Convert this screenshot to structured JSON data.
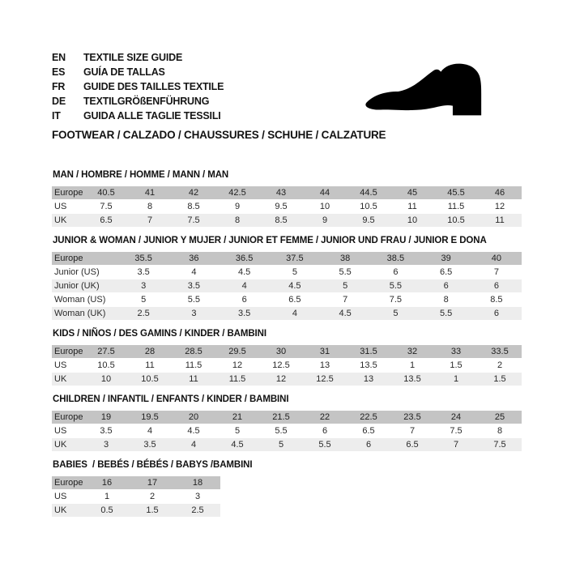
{
  "header": {
    "languages": [
      {
        "code": "EN",
        "label": "TEXTILE SIZE GUIDE"
      },
      {
        "code": "ES",
        "label": "GUÍA DE TALLAS"
      },
      {
        "code": "FR",
        "label": "GUIDE DES TAILLES TEXTILE"
      },
      {
        "code": "DE",
        "label": "TEXTILGRÖßENFÜHRUNG"
      },
      {
        "code": "IT",
        "label": "GUIDA ALLE TAGLIE TESSILI"
      }
    ],
    "shoe_icon": "dress-shoe-silhouette",
    "category_line": "FOOTWEAR / CALZADO / CHAUSSURES / SCHUHE / CALZATURE"
  },
  "colors": {
    "header_row_bg": "#c4c4c4",
    "alt_row_bg": "#ededed",
    "plain_row_bg": "#ffffff",
    "text": "#1d1d1b",
    "shoe": "#000000"
  },
  "size_tables": [
    {
      "title": "MAN / HOMBRE / HOMME / MANN / MAN",
      "layout": "wide",
      "rows": [
        {
          "label": "Europe",
          "values": [
            "40.5",
            "41",
            "42",
            "42.5",
            "43",
            "44",
            "44.5",
            "45",
            "45.5",
            "46"
          ]
        },
        {
          "label": "US",
          "values": [
            "7.5",
            "8",
            "8.5",
            "9",
            "9.5",
            "10",
            "10.5",
            "11",
            "11.5",
            "12"
          ]
        },
        {
          "label": "UK",
          "values": [
            "6.5",
            "7",
            "7.5",
            "8",
            "8.5",
            "9",
            "9.5",
            "10",
            "10.5",
            "11"
          ]
        }
      ]
    },
    {
      "title": "JUNIOR & WOMAN / JUNIOR Y MUJER / JUNIOR ET FEMME / JUNIOR UND FRAU / JUNIOR E DONA",
      "layout": "wide-labels",
      "rows": [
        {
          "label": "Europe",
          "values": [
            "35.5",
            "36",
            "36.5",
            "37.5",
            "38",
            "38.5",
            "39",
            "40"
          ]
        },
        {
          "label": "Junior (US)",
          "values": [
            "3.5",
            "4",
            "4.5",
            "5",
            "5.5",
            "6",
            "6.5",
            "7"
          ]
        },
        {
          "label": "Junior (UK)",
          "values": [
            "3",
            "3.5",
            "4",
            "4.5",
            "5",
            "5.5",
            "6",
            "6"
          ]
        },
        {
          "label": "Woman (US)",
          "values": [
            "5",
            "5.5",
            "6",
            "6.5",
            "7",
            "7.5",
            "8",
            "8.5"
          ]
        },
        {
          "label": "Woman (UK)",
          "values": [
            "2.5",
            "3",
            "3.5",
            "4",
            "4.5",
            "5",
            "5.5",
            "6"
          ]
        }
      ]
    },
    {
      "title": "KIDS / NIÑOS / DES GAMINS / KINDER / BAMBINI",
      "layout": "wide",
      "rows": [
        {
          "label": "Europe",
          "values": [
            "27.5",
            "28",
            "28.5",
            "29.5",
            "30",
            "31",
            "31.5",
            "32",
            "33",
            "33.5"
          ]
        },
        {
          "label": "US",
          "values": [
            "10.5",
            "11",
            "11.5",
            "12",
            "12.5",
            "13",
            "13.5",
            "1",
            "1.5",
            "2"
          ]
        },
        {
          "label": "UK",
          "values": [
            "10",
            "10.5",
            "11",
            "11.5",
            "12",
            "12.5",
            "13",
            "13.5",
            "1",
            "1.5"
          ]
        }
      ]
    },
    {
      "title": "CHILDREN / INFANTIL / ENFANTS / KINDER / BAMBINI",
      "layout": "wide",
      "rows": [
        {
          "label": "Europe",
          "values": [
            "19",
            "19.5",
            "20",
            "21",
            "21.5",
            "22",
            "22.5",
            "23.5",
            "24",
            "25"
          ]
        },
        {
          "label": "US",
          "values": [
            "3.5",
            "4",
            "4.5",
            "5",
            "5.5",
            "6",
            "6.5",
            "7",
            "7.5",
            "8"
          ]
        },
        {
          "label": "UK",
          "values": [
            "3",
            "3.5",
            "4",
            "4.5",
            "5",
            "5.5",
            "6",
            "6.5",
            "7",
            "7.5"
          ]
        }
      ]
    },
    {
      "title": "BABIES  / BEBÉS / BÉBÉS / BABYS /BAMBINI",
      "layout": "narrow",
      "rows": [
        {
          "label": "Europe",
          "values": [
            "16",
            "17",
            "18"
          ]
        },
        {
          "label": "US",
          "values": [
            "1",
            "2",
            "3"
          ]
        },
        {
          "label": "UK",
          "values": [
            "0.5",
            "1.5",
            "2.5"
          ]
        }
      ]
    }
  ]
}
